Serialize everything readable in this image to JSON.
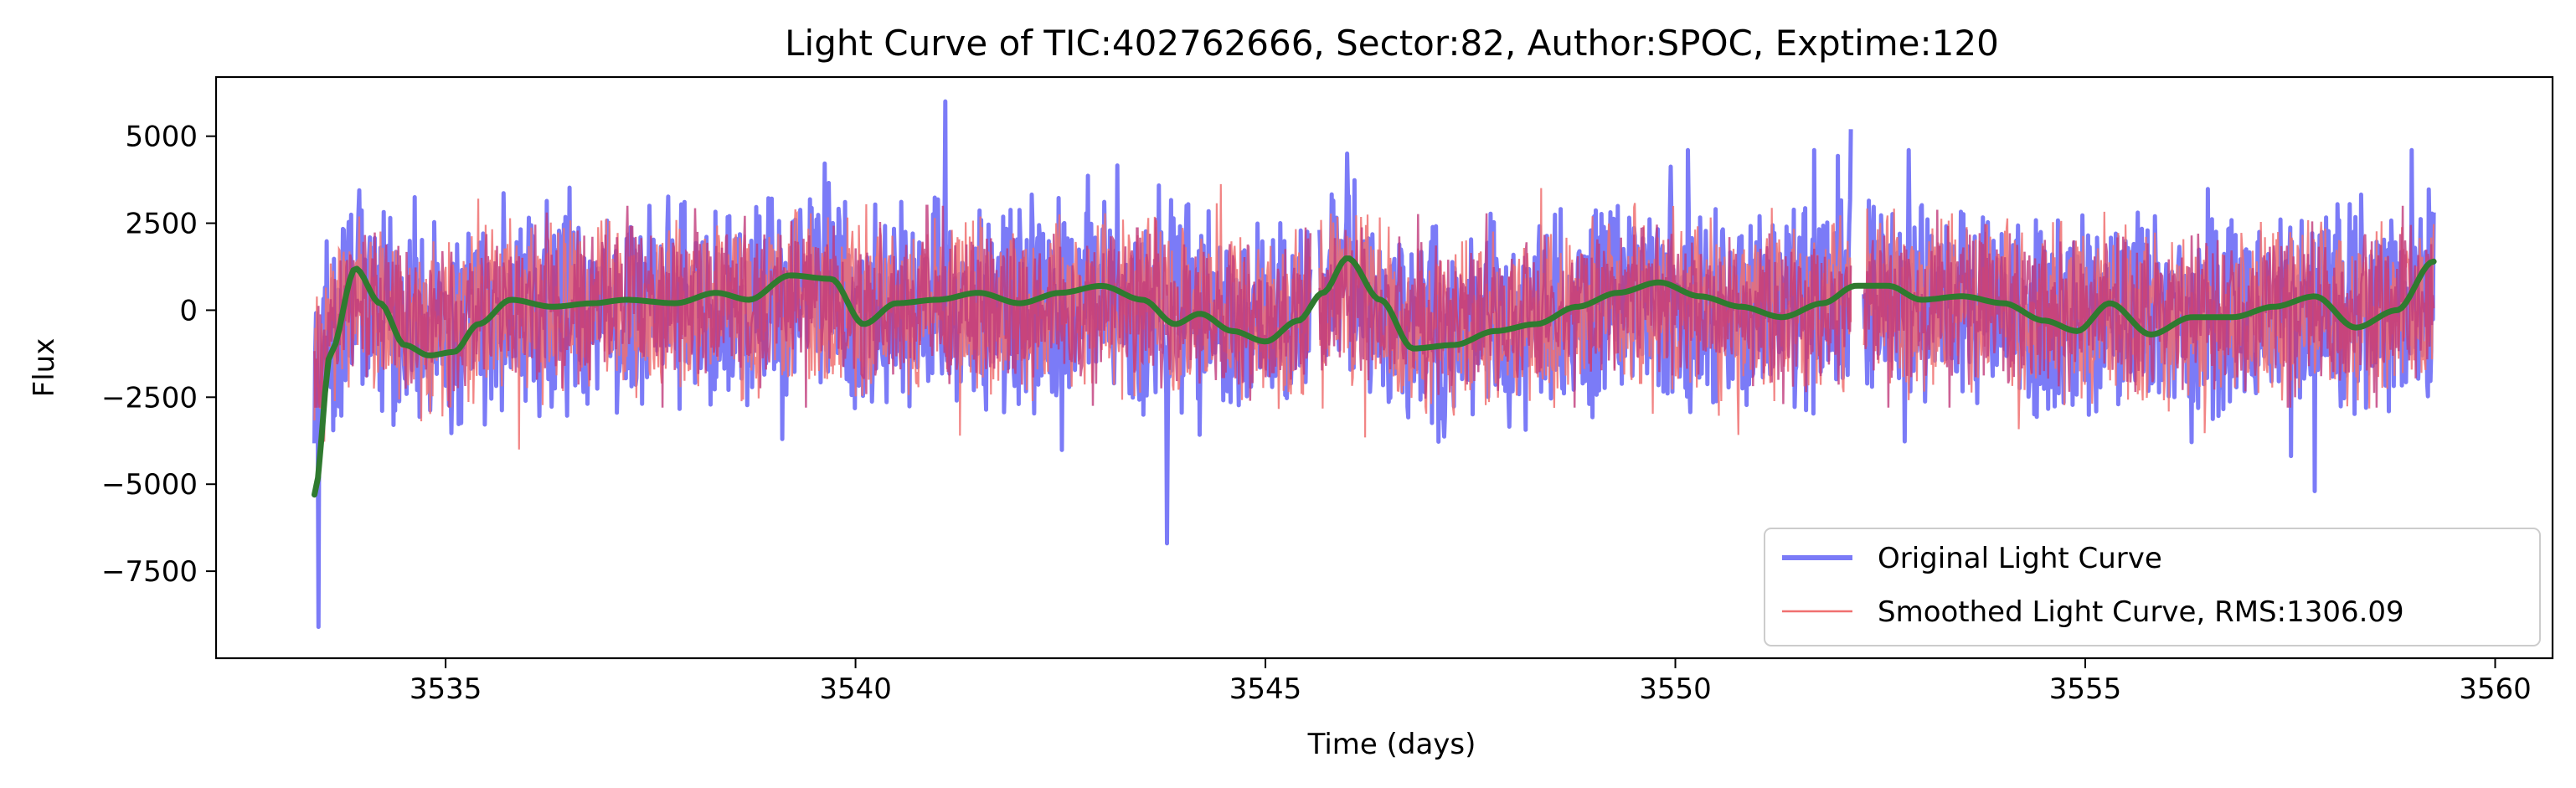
{
  "chart_data": {
    "type": "line",
    "title": "Light Curve of TIC:402762666, Sector:82, Author:SPOC, Exptime:120",
    "xlabel": "Time (days)",
    "ylabel": "Flux",
    "xlim": [
      3532.2,
      3560.7
    ],
    "ylim": [
      -10000,
      6700
    ],
    "xticks": [
      3535,
      3540,
      3545,
      3550,
      3555,
      3560
    ],
    "yticks": [
      -7500,
      -5000,
      -2500,
      0,
      2500,
      5000
    ],
    "xtick_labels": [
      "3535",
      "3540",
      "3545",
      "3550",
      "3555",
      "3560"
    ],
    "ytick_labels": [
      "−7500",
      "−5000",
      "−2500",
      "0",
      "2500",
      "5000"
    ],
    "grid": false,
    "legend_position": "lower-right",
    "data_range": [
      3533.4,
      3559.25
    ],
    "gaps": [
      [
        3545.55,
        3545.65
      ],
      [
        3552.15,
        3552.3
      ]
    ],
    "series": [
      {
        "name": "Original Light Curve",
        "color": "#7b7bf7",
        "style": "thick noisy line",
        "typical_range": [
          -3800,
          4000
        ],
        "extremes": [
          {
            "x": 3533.45,
            "y": -9100
          },
          {
            "x": 3541.1,
            "y": 6000
          },
          {
            "x": 3543.8,
            "y": -6700
          },
          {
            "x": 3546.0,
            "y": 4500
          },
          {
            "x": 3552.2,
            "y": 5200
          },
          {
            "x": 3557.8,
            "y": -5200
          }
        ]
      },
      {
        "name": "Smoothed Light Curve, RMS:1306.09",
        "color": "#f07070",
        "style": "thin noisy line",
        "typical_range": [
          -3200,
          3400
        ]
      },
      {
        "name": "",
        "color": "#2f7a2f",
        "style": "thick trend line",
        "x": [
          3533.4,
          3533.6,
          3533.9,
          3534.2,
          3534.5,
          3534.8,
          3535.1,
          3535.4,
          3535.8,
          3536.3,
          3536.8,
          3537.2,
          3537.8,
          3538.3,
          3538.7,
          3539.2,
          3539.7,
          3540.1,
          3540.5,
          3541.0,
          3541.5,
          3542.0,
          3542.5,
          3543.0,
          3543.5,
          3543.9,
          3544.2,
          3544.6,
          3545.0,
          3545.4,
          3545.7,
          3546.0,
          3546.4,
          3546.8,
          3547.3,
          3547.8,
          3548.3,
          3548.8,
          3549.3,
          3549.8,
          3550.3,
          3550.8,
          3551.3,
          3551.8,
          3552.2,
          3552.6,
          3553.0,
          3553.5,
          3554.0,
          3554.5,
          3554.9,
          3555.3,
          3555.8,
          3556.3,
          3556.8,
          3557.3,
          3557.8,
          3558.3,
          3558.8,
          3559.25
        ],
        "values": [
          -5300,
          -1200,
          1200,
          200,
          -1000,
          -1300,
          -1200,
          -400,
          300,
          100,
          200,
          300,
          200,
          500,
          300,
          1000,
          900,
          -400,
          200,
          300,
          500,
          200,
          500,
          700,
          300,
          -400,
          -100,
          -600,
          -900,
          -300,
          500,
          1500,
          300,
          -1100,
          -1000,
          -600,
          -400,
          100,
          500,
          800,
          400,
          100,
          -200,
          200,
          700,
          700,
          300,
          400,
          200,
          -300,
          -600,
          200,
          -700,
          -200,
          -200,
          100,
          400,
          -500,
          0,
          1400
        ]
      }
    ]
  }
}
